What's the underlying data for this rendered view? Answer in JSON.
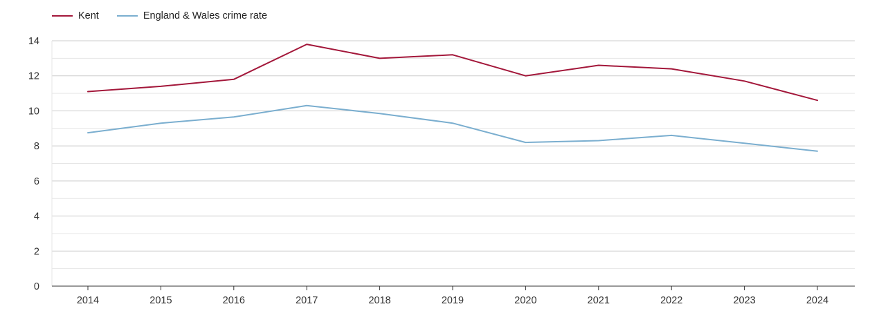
{
  "chart_data": {
    "type": "line",
    "categories": [
      "2014",
      "2015",
      "2016",
      "2017",
      "2018",
      "2019",
      "2020",
      "2021",
      "2022",
      "2023",
      "2024"
    ],
    "series": [
      {
        "name": "Kent",
        "color": "#a3173a",
        "values": [
          11.1,
          11.4,
          11.8,
          13.8,
          13.0,
          13.2,
          12.0,
          12.6,
          12.4,
          11.7,
          10.6
        ]
      },
      {
        "name": "England & Wales crime rate",
        "color": "#7aaecf",
        "values": [
          8.75,
          9.3,
          9.65,
          10.3,
          9.85,
          9.3,
          8.2,
          8.3,
          8.6,
          8.15,
          7.7
        ]
      }
    ],
    "yticks": [
      "0",
      "2",
      "4",
      "6",
      "8",
      "10",
      "12",
      "14"
    ],
    "ylim": [
      0,
      14
    ],
    "grid": true,
    "legend_position": "top-left",
    "colors": {
      "major_grid": "#cccccc",
      "minor_grid": "#e6e6e6",
      "axis": "#333333"
    }
  }
}
